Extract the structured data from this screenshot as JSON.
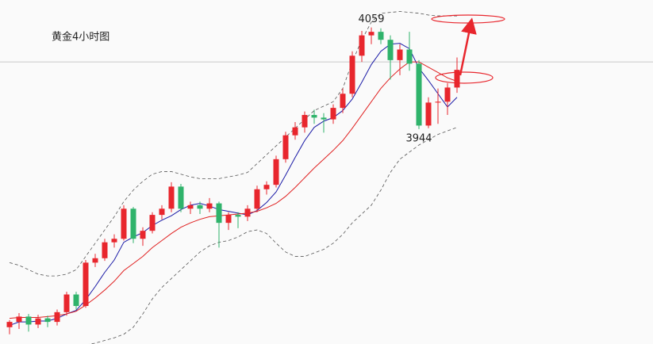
{
  "chart_data": {
    "type": "candlestick",
    "title": "黄金4小时图",
    "ylim": [
      3701,
      4090
    ],
    "hline": 4020,
    "up_color": "#e8262d",
    "down_color": "#2fb36b",
    "annotations": [
      {
        "text": "4059",
        "candle": 38,
        "at": "high"
      },
      {
        "text": "3944",
        "candle": 43,
        "at": "low"
      }
    ],
    "open": [
      3720,
      3726,
      3732,
      3723,
      3730,
      3726,
      3737,
      3757,
      3744,
      3793,
      3798,
      3816,
      3820,
      3854,
      3820,
      3829,
      3847,
      3854,
      3879,
      3854,
      3858,
      3854,
      3860,
      3838,
      3847,
      3845,
      3854,
      3876,
      3881,
      3910,
      3937,
      3946,
      3960,
      3957,
      3955,
      3968,
      3984,
      4027,
      4050,
      4054,
      4045,
      4022,
      4034,
      4018,
      3948,
      3974,
      3975,
      3991
    ],
    "high": [
      3728,
      3736,
      3735,
      3734,
      3733,
      3740,
      3760,
      3760,
      3796,
      3803,
      3820,
      3825,
      3858,
      3856,
      3833,
      3850,
      3858,
      3884,
      3882,
      3862,
      3862,
      3866,
      3862,
      3850,
      3850,
      3858,
      3880,
      3885,
      3914,
      3941,
      3952,
      3964,
      3966,
      3962,
      3972,
      3990,
      4032,
      4055,
      4059,
      4058,
      4050,
      4040,
      4054,
      4022,
      3980,
      3990,
      3996,
      4025
    ],
    "low": [
      3712,
      3718,
      3715,
      3719,
      3720,
      3722,
      3733,
      3740,
      3742,
      3788,
      3795,
      3810,
      3818,
      3815,
      3812,
      3826,
      3842,
      3850,
      3850,
      3848,
      3848,
      3850,
      3810,
      3830,
      3832,
      3840,
      3850,
      3870,
      3878,
      3906,
      3932,
      3940,
      3950,
      3940,
      3950,
      3962,
      3980,
      4020,
      4040,
      4040,
      4000,
      4005,
      4010,
      3944,
      3945,
      3950,
      3960,
      3985
    ],
    "close": [
      3726,
      3732,
      3723,
      3730,
      3726,
      3737,
      3757,
      3744,
      3793,
      3798,
      3816,
      3820,
      3854,
      3820,
      3829,
      3847,
      3854,
      3879,
      3854,
      3858,
      3854,
      3860,
      3838,
      3847,
      3845,
      3854,
      3876,
      3881,
      3910,
      3937,
      3946,
      3960,
      3957,
      3955,
      3968,
      3984,
      4027,
      4050,
      4054,
      4045,
      4022,
      4034,
      4018,
      3948,
      3974,
      3975,
      3991,
      4011
    ],
    "series": [
      {
        "color": "#1a1aa6",
        "dash": false,
        "values": [
          3722,
          3726,
          3726,
          3727,
          3727,
          3730,
          3735,
          3739,
          3751,
          3766,
          3782,
          3796,
          3816,
          3822,
          3827,
          3835,
          3841,
          3846,
          3853,
          3858,
          3860,
          3857,
          3853,
          3851,
          3849,
          3847,
          3852,
          3861,
          3873,
          3892,
          3912,
          3931,
          3946,
          3953,
          3957,
          3965,
          3978,
          3997,
          4017,
          4032,
          4040,
          4041,
          4035,
          4013,
          3999,
          3984,
          3969,
          3980
        ]
      },
      {
        "color": "#e02020",
        "dash": false,
        "values": [
          3730,
          3731,
          3731,
          3731,
          3732,
          3733,
          3735,
          3738,
          3745,
          3753,
          3762,
          3772,
          3784,
          3792,
          3800,
          3810,
          3818,
          3826,
          3833,
          3838,
          3842,
          3845,
          3846,
          3847,
          3848,
          3849,
          3851,
          3855,
          3860,
          3868,
          3878,
          3889,
          3900,
          3910,
          3920,
          3931,
          3945,
          3960,
          3975,
          3990,
          4002,
          4012,
          4020,
          4020,
          4014,
          4008,
          4002,
          3998
        ]
      },
      {
        "color": "#555555",
        "dash": true,
        "values": [
          3793,
          3790,
          3785,
          3780,
          3778,
          3778,
          3780,
          3785,
          3800,
          3815,
          3830,
          3845,
          3862,
          3875,
          3885,
          3893,
          3896,
          3896,
          3893,
          3890,
          3888,
          3888,
          3888,
          3890,
          3892,
          3895,
          3905,
          3915,
          3925,
          3935,
          3945,
          3955,
          3965,
          3970,
          3975,
          3990,
          4020,
          4045,
          4065,
          4075,
          4076,
          4077,
          4076,
          4075,
          4073,
          4072,
          4072,
          4072
        ]
      },
      {
        "color": "#555555",
        "dash": true,
        "values": [
          3690,
          3688,
          3690,
          3692,
          3694,
          3695,
          3696,
          3698,
          3700,
          3702,
          3705,
          3708,
          3712,
          3720,
          3735,
          3752,
          3765,
          3775,
          3785,
          3795,
          3805,
          3812,
          3816,
          3818,
          3822,
          3828,
          3830,
          3826,
          3815,
          3805,
          3800,
          3800,
          3804,
          3808,
          3815,
          3825,
          3838,
          3848,
          3858,
          3875,
          3895,
          3910,
          3918,
          3926,
          3932,
          3938,
          3942,
          3946
        ]
      }
    ]
  }
}
